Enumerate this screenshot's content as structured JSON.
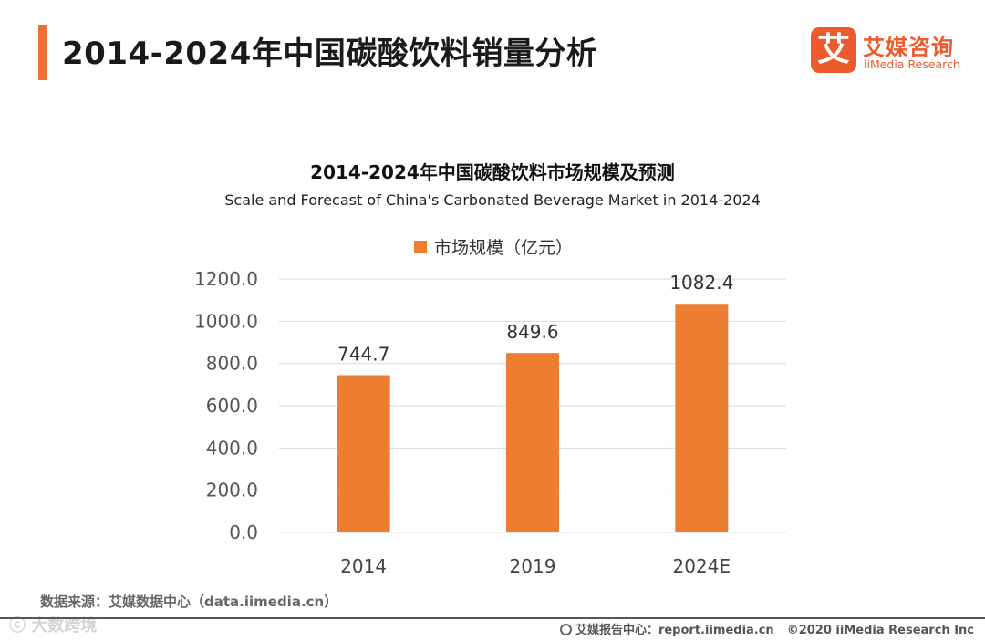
{
  "header": {
    "title": "2014-2024年中国碳酸饮料销量分析",
    "logo_mark": "艾",
    "logo_cn": "艾媒咨询",
    "logo_en": "iiMedia Research"
  },
  "chart_data": {
    "type": "bar",
    "title": "2014-2024年中国碳酸饮料市场规模及预测",
    "subtitle": "Scale and Forecast of China's Carbonated Beverage Market in 2014-2024",
    "categories": [
      "2014",
      "2019",
      "2024E"
    ],
    "series": [
      {
        "name": "市场规模（亿元）",
        "values": [
          744.7,
          849.6,
          1082.4
        ],
        "color": "#ed7d31"
      }
    ],
    "value_labels": [
      "744.7",
      "849.6",
      "1082.4"
    ],
    "ylim": [
      0,
      1200
    ],
    "yticks": [
      "0.0",
      "200.0",
      "400.0",
      "600.0",
      "800.0",
      "1000.0",
      "1200.0"
    ],
    "xlabel": "",
    "ylabel": "",
    "grid": true,
    "legend_position": "top-center"
  },
  "footer": {
    "source": "数据来源：艾媒数据中心（data.iimedia.cn）",
    "report_center": "艾媒报告中心：report.iimedia.cn",
    "copyright": "©2020  iiMedia Research  Inc",
    "watermark": "ⓒ 大数跨境"
  },
  "colors": {
    "accent": "#ed7031",
    "brand": "#ed5b2d",
    "bar": "#ed7d31",
    "grid": "#d9d9d9"
  }
}
